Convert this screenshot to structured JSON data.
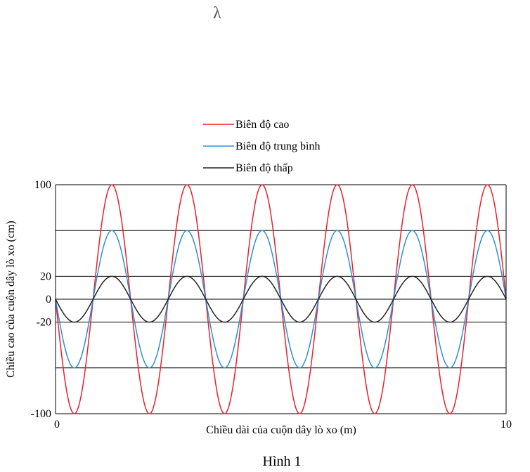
{
  "figure": {
    "symbol": "λ",
    "caption": "Hình 1"
  },
  "chart_data": {
    "type": "line",
    "title": "",
    "xlabel": "Chiều dài của cuộn dây lò xo (m)",
    "ylabel": "Chiều cao của cuộn dây lò xo (cm)",
    "xlim": [
      0,
      10
    ],
    "ylim": [
      -100,
      100
    ],
    "x_tick_labels": [
      {
        "value": 0,
        "label": "0"
      },
      {
        "value": 10,
        "label": "10"
      }
    ],
    "y_tick_labels": [
      {
        "value": 100,
        "label": "100"
      },
      {
        "value": 20,
        "label": "20"
      },
      {
        "value": 0,
        "label": "0"
      },
      {
        "value": -20,
        "label": "-20"
      },
      {
        "value": -100,
        "label": "-100"
      }
    ],
    "gridlines_y": [
      100,
      60,
      20,
      0,
      -20,
      -60,
      -100
    ],
    "grid": "horizontal",
    "legend_position": "top-center",
    "wave": {
      "function": "y = -A·sin(2πx/λ)",
      "wavelength": 1.667
    },
    "series": [
      {
        "name": "Biên độ cao",
        "amplitude": 100,
        "color": "#e8212a"
      },
      {
        "name": "Biên độ trung bình",
        "amplitude": 60,
        "color": "#2e8fd6"
      },
      {
        "name": "Biên độ thấp",
        "amplitude": 20,
        "color": "#222222"
      }
    ]
  }
}
